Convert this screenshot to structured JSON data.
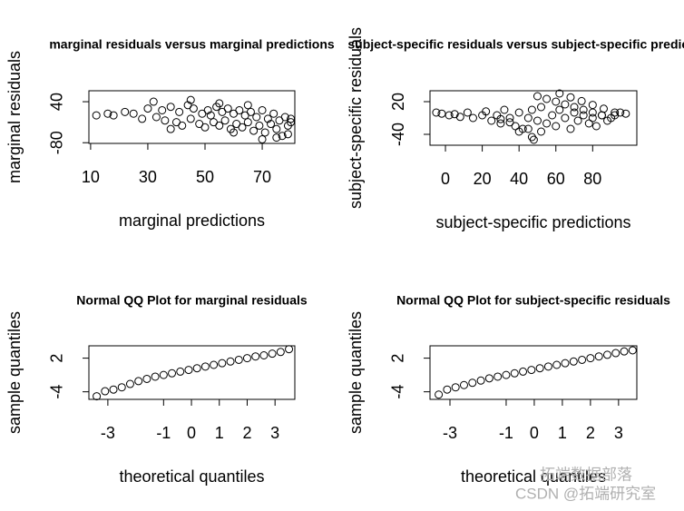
{
  "chart_data": [
    {
      "type": "scatter",
      "title": "marginal residuals versus marginal predictions",
      "xlabel": "marginal predictions",
      "ylabel": "marginal residuals",
      "xlim": [
        9.4,
        81.4
      ],
      "ylim": [
        -82,
        72
      ],
      "xticks": [
        10,
        30,
        50,
        70
      ],
      "yticks": [
        -80,
        40
      ],
      "x": [
        12,
        16,
        18,
        22,
        25,
        28,
        30,
        32,
        33,
        35,
        36,
        38,
        40,
        41,
        42,
        44,
        45,
        46,
        48,
        49,
        50,
        51,
        52,
        53,
        54,
        55,
        56,
        57,
        58,
        59,
        60,
        61,
        62,
        63,
        64,
        65,
        66,
        67,
        68,
        69,
        70,
        71,
        72,
        73,
        74,
        75,
        76,
        77,
        78,
        79,
        80,
        80,
        79,
        45,
        55,
        65,
        38,
        60,
        70,
        75
      ],
      "values": [
        0,
        5,
        0,
        10,
        5,
        -10,
        20,
        40,
        -5,
        15,
        -15,
        25,
        -20,
        10,
        -30,
        30,
        -10,
        20,
        -25,
        5,
        -35,
        15,
        0,
        -20,
        25,
        -30,
        10,
        -15,
        20,
        -40,
        5,
        -25,
        15,
        -35,
        0,
        -20,
        10,
        -45,
        -5,
        -30,
        15,
        -50,
        -10,
        -25,
        5,
        -40,
        -15,
        -60,
        -5,
        -30,
        -20,
        -10,
        -55,
        45,
        35,
        30,
        -40,
        -50,
        -70,
        -65
      ],
      "color": "#000000"
    },
    {
      "type": "scatter",
      "title": "subject-specific residuals versus subject-specific predictions",
      "xlabel": "subject-specific predictions",
      "ylabel": "subject-specific residuals",
      "xlim": [
        -8.4,
        104
      ],
      "ylim": [
        -60,
        40
      ],
      "xticks": [
        0,
        20,
        40,
        60,
        80
      ],
      "yticks": [
        -40,
        20
      ],
      "x": [
        -5,
        -2,
        2,
        5,
        8,
        12,
        15,
        20,
        22,
        25,
        28,
        30,
        32,
        35,
        38,
        40,
        42,
        45,
        47,
        48,
        50,
        52,
        55,
        58,
        60,
        62,
        65,
        68,
        70,
        72,
        75,
        78,
        80,
        82,
        85,
        88,
        90,
        92,
        95,
        98,
        50,
        55,
        60,
        65,
        70,
        75,
        80,
        85,
        62,
        68,
        74,
        80,
        86,
        92,
        40,
        45,
        30,
        35,
        47,
        52
      ],
      "values": [
        0,
        -2,
        -5,
        -3,
        -8,
        0,
        -10,
        -5,
        2,
        -15,
        -5,
        -20,
        5,
        -10,
        -25,
        0,
        -30,
        -10,
        5,
        -50,
        -15,
        10,
        -20,
        -5,
        -25,
        5,
        -10,
        -30,
        0,
        -15,
        -5,
        -20,
        -10,
        -25,
        -5,
        -15,
        -10,
        -5,
        0,
        -2,
        30,
        25,
        20,
        15,
        10,
        5,
        0,
        -5,
        35,
        28,
        21,
        14,
        7,
        0,
        -35,
        -30,
        -12,
        -18,
        -45,
        -35
      ],
      "color": "#000000"
    },
    {
      "type": "scatter",
      "title": "Normal QQ Plot for marginal residuals",
      "xlabel": "theoretical quantiles",
      "ylabel": "sample quantiles",
      "xlim": [
        -3.68,
        3.71
      ],
      "ylim": [
        -5.35,
        4.2
      ],
      "xticks": [
        -3,
        -1,
        0,
        1,
        2,
        3
      ],
      "yticks": [
        -4,
        2
      ],
      "x": [
        -3.4,
        -3.1,
        -2.8,
        -2.5,
        -2.2,
        -1.9,
        -1.6,
        -1.3,
        -1,
        -0.7,
        -0.4,
        -0.1,
        0.2,
        0.5,
        0.8,
        1.1,
        1.4,
        1.7,
        2,
        2.3,
        2.6,
        2.9,
        3.2,
        3.5
      ],
      "values": [
        -4.8,
        -3.9,
        -3.6,
        -3.2,
        -2.6,
        -2.1,
        -1.7,
        -1.3,
        -1,
        -0.7,
        -0.4,
        -0.1,
        0.2,
        0.5,
        0.8,
        1.1,
        1.4,
        1.7,
        2,
        2.3,
        2.5,
        2.8,
        3.1,
        3.6
      ],
      "color": "#000000"
    },
    {
      "type": "scatter",
      "title": "Normal QQ Plot for subject-specific residuals",
      "xlabel": "theoretical quantiles",
      "ylabel": "sample quantiles",
      "xlim": [
        -3.71,
        3.65
      ],
      "ylim": [
        -5.35,
        4.2
      ],
      "xticks": [
        -3,
        -1,
        0,
        1,
        2,
        3
      ],
      "yticks": [
        -4,
        2
      ],
      "x": [
        -3.4,
        -3.1,
        -2.8,
        -2.5,
        -2.2,
        -1.9,
        -1.6,
        -1.3,
        -1,
        -0.7,
        -0.4,
        -0.1,
        0.2,
        0.5,
        0.8,
        1.1,
        1.4,
        1.7,
        2,
        2.3,
        2.6,
        2.9,
        3.2,
        3.5
      ],
      "values": [
        -4.5,
        -3.6,
        -3.2,
        -2.8,
        -2.4,
        -2,
        -1.6,
        -1.3,
        -1,
        -0.7,
        -0.4,
        -0.1,
        0.2,
        0.5,
        0.8,
        1.1,
        1.4,
        1.7,
        2,
        2.3,
        2.6,
        2.9,
        3.2,
        3.4
      ],
      "color": "#000000"
    }
  ],
  "watermark": [
    "拓端数据部落",
    "CSDN @拓端研究室"
  ]
}
